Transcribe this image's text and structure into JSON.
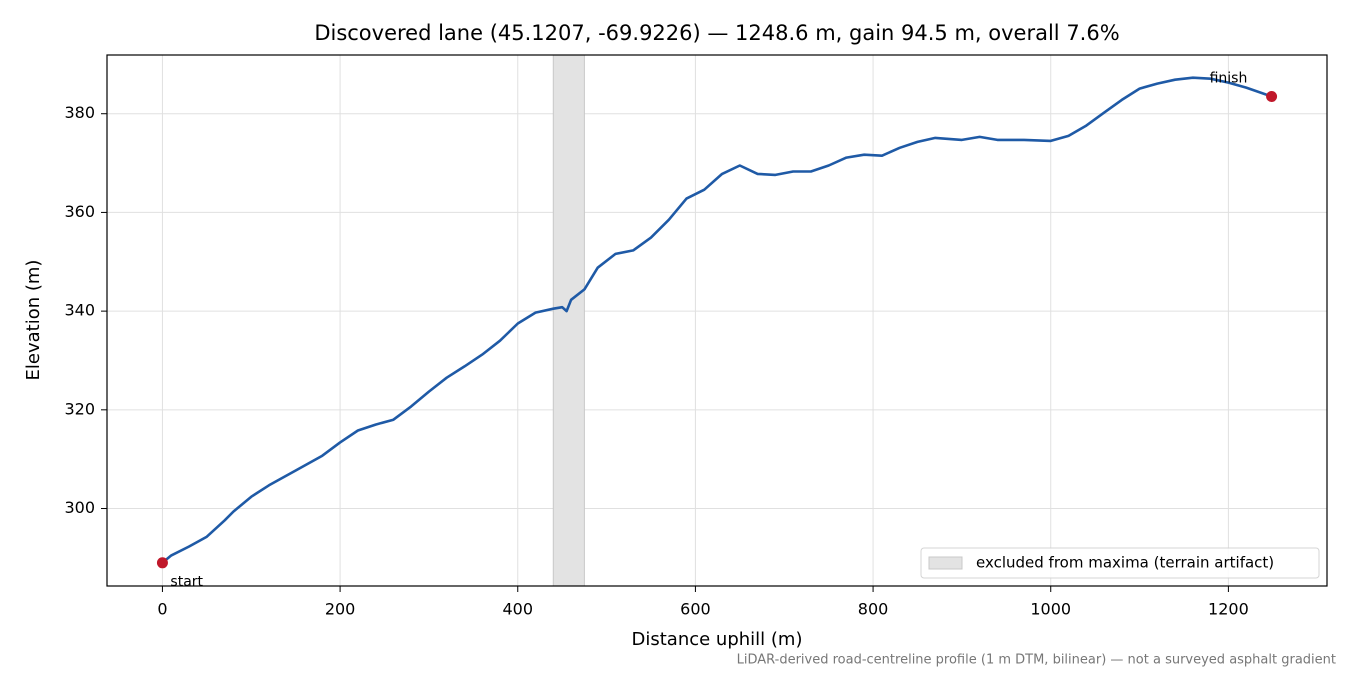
{
  "chart_data": {
    "type": "line",
    "title": "Discovered lane (45.1207, -69.9226) — 1248.6 m, gain 94.5 m, overall 7.6%",
    "x_label": "Distance uphill (m)",
    "y_label": "Elevation (m)",
    "footnote": "LiDAR-derived road-centreline profile (1 m DTM, bilinear) — not a surveyed asphalt gradient",
    "x": [
      0,
      10,
      30,
      50,
      70,
      80,
      100,
      120,
      150,
      180,
      200,
      220,
      240,
      260,
      280,
      300,
      320,
      340,
      360,
      380,
      400,
      420,
      440,
      450,
      455,
      460,
      475,
      490,
      510,
      530,
      550,
      570,
      590,
      610,
      630,
      650,
      670,
      690,
      710,
      730,
      750,
      770,
      790,
      810,
      830,
      850,
      870,
      900,
      920,
      940,
      970,
      1000,
      1020,
      1040,
      1060,
      1080,
      1100,
      1120,
      1140,
      1160,
      1180,
      1200,
      1220,
      1248.6
    ],
    "values": [
      289.0,
      290.5,
      292.3,
      294.3,
      297.6,
      299.4,
      302.4,
      304.7,
      307.7,
      310.7,
      313.4,
      315.8,
      317.0,
      318.0,
      320.7,
      323.7,
      326.5,
      328.8,
      331.2,
      334.0,
      337.5,
      339.7,
      340.5,
      340.8,
      340.0,
      342.3,
      344.4,
      348.8,
      351.6,
      352.3,
      354.9,
      358.5,
      362.8,
      364.6,
      367.8,
      369.5,
      367.8,
      367.6,
      368.3,
      368.3,
      369.5,
      371.1,
      371.7,
      371.5,
      373.1,
      374.3,
      375.1,
      374.7,
      375.3,
      374.7,
      374.7,
      374.5,
      375.5,
      377.6,
      380.2,
      382.8,
      385.1,
      386.1,
      386.9,
      387.3,
      387.1,
      386.3,
      385.3,
      383.5
    ],
    "color": "#1f5aa6",
    "annotations": [
      {
        "label": "start",
        "x": 0,
        "y": 289.0,
        "color": "#c0182a"
      },
      {
        "label": "finish",
        "x": 1248.6,
        "y": 383.5,
        "color": "#c0182a"
      }
    ],
    "span": {
      "label": "excluded from maxima (terrain artifact)",
      "x": [
        440,
        475
      ],
      "color": "#e3e3e3"
    },
    "xlim": [
      -62.4,
      1311.0
    ],
    "ylim": [
      284.3,
      391.9
    ],
    "xticks": [
      0,
      200,
      400,
      600,
      800,
      1000,
      1200
    ],
    "yticks": [
      300,
      320,
      340,
      360,
      380
    ],
    "grid": true,
    "legend_position": "lower right"
  }
}
